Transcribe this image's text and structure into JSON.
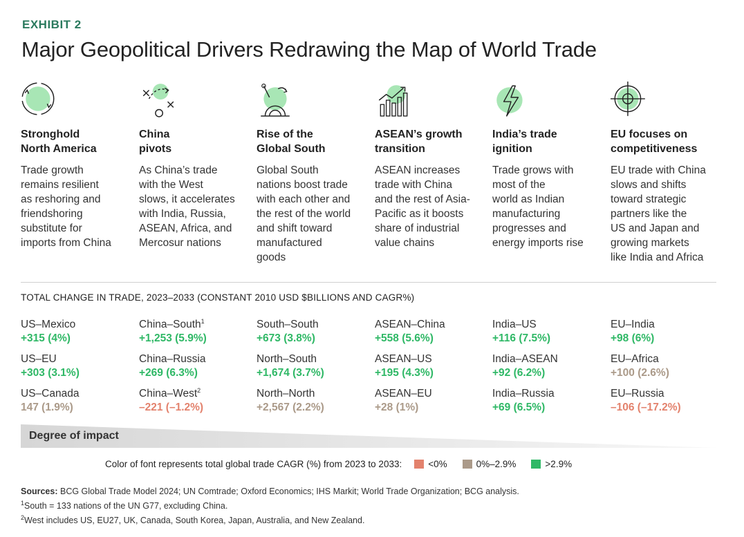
{
  "header": {
    "exhibit": "EXHIBIT 2",
    "title": "Major Geopolitical Drivers Redrawing the Map of World Trade"
  },
  "drivers": [
    {
      "icon": "globe-cycle-icon",
      "title": "Stronghold\nNorth America",
      "desc": "Trade growth\nremains resilient\nas reshoring and\nfriendshoring\nsubstitute for\nimports from China"
    },
    {
      "icon": "strategy-pivot-icon",
      "title": "China\npivots",
      "desc": "As China’s trade\nwith the West\nslows, it accelerates\nwith India, Russia,\nASEAN, Africa, and\nMercosur nations"
    },
    {
      "icon": "rising-sun-icon",
      "title": "Rise of the\nGlobal South",
      "desc": "Global South\nnations boost trade\nwith each other and\nthe rest of the world\nand shift toward\nmanufactured\ngoods"
    },
    {
      "icon": "growth-chart-icon",
      "title": "ASEAN’s growth\ntransition",
      "desc": "ASEAN increases\ntrade with China\nand the rest of Asia-\nPacific as it boosts\nshare of industrial\nvalue chains"
    },
    {
      "icon": "lightning-icon",
      "title": "India’s trade\nignition",
      "desc": "Trade grows with\nmost of the\nworld as Indian\nmanufacturing\nprogresses and\nenergy imports rise"
    },
    {
      "icon": "target-icon",
      "title": "EU focuses on\ncompetitiveness",
      "desc": "EU trade with China\nslows and shifts\ntoward strategic\npartners like the\nUS and Japan and\ngrowing markets\nlike India and Africa"
    }
  ],
  "section_label": "TOTAL CHANGE IN TRADE, 2023–2033 (CONSTANT 2010 USD $BILLIONS AND CAGR%)",
  "colors": {
    "negative": "#e3826d",
    "low": "#ab9a89",
    "high": "#2fb866",
    "accent": "#2b7a5e",
    "icon_fill": "#a8e6b5"
  },
  "chart_data": {
    "type": "table",
    "columns": [
      [
        {
          "pair": "US–Mexico",
          "sup": "",
          "value": "+315 (4%)",
          "change": 315,
          "cagr": 4.0,
          "category": "high"
        },
        {
          "pair": "US–EU",
          "sup": "",
          "value": "+303 (3.1%)",
          "change": 303,
          "cagr": 3.1,
          "category": "high"
        },
        {
          "pair": "US–Canada",
          "sup": "",
          "value": "147 (1.9%)",
          "change": 147,
          "cagr": 1.9,
          "category": "low"
        }
      ],
      [
        {
          "pair": "China–South",
          "sup": "1",
          "value": "+1,253 (5.9%)",
          "change": 1253,
          "cagr": 5.9,
          "category": "high"
        },
        {
          "pair": "China–Russia",
          "sup": "",
          "value": "+269 (6.3%)",
          "change": 269,
          "cagr": 6.3,
          "category": "high"
        },
        {
          "pair": "China–West",
          "sup": "2",
          "value": "–221 (–1.2%)",
          "change": -221,
          "cagr": -1.2,
          "category": "negative"
        }
      ],
      [
        {
          "pair": "South–South",
          "sup": "",
          "value": "+673 (3.8%)",
          "change": 673,
          "cagr": 3.8,
          "category": "high"
        },
        {
          "pair": "North–South",
          "sup": "",
          "value": "+1,674 (3.7%)",
          "change": 1674,
          "cagr": 3.7,
          "category": "high"
        },
        {
          "pair": "North–North",
          "sup": "",
          "value": "+2,567 (2.2%)",
          "change": 2567,
          "cagr": 2.2,
          "category": "low"
        }
      ],
      [
        {
          "pair": "ASEAN–China",
          "sup": "",
          "value": "+558 (5.6%)",
          "change": 558,
          "cagr": 5.6,
          "category": "high"
        },
        {
          "pair": "ASEAN–US",
          "sup": "",
          "value": "+195 (4.3%)",
          "change": 195,
          "cagr": 4.3,
          "category": "high"
        },
        {
          "pair": "ASEAN–EU",
          "sup": "",
          "value": "+28 (1%)",
          "change": 28,
          "cagr": 1.0,
          "category": "low"
        }
      ],
      [
        {
          "pair": "India–US",
          "sup": "",
          "value": "+116 (7.5%)",
          "change": 116,
          "cagr": 7.5,
          "category": "high"
        },
        {
          "pair": "India–ASEAN",
          "sup": "",
          "value": "+92 (6.2%)",
          "change": 92,
          "cagr": 6.2,
          "category": "high"
        },
        {
          "pair": "India–Russia",
          "sup": "",
          "value": "+69 (6.5%)",
          "change": 69,
          "cagr": 6.5,
          "category": "high"
        }
      ],
      [
        {
          "pair": "EU–India",
          "sup": "",
          "value": "+98 (6%)",
          "change": 98,
          "cagr": 6.0,
          "category": "high"
        },
        {
          "pair": "EU–Africa",
          "sup": "",
          "value": "+100 (2.6%)",
          "change": 100,
          "cagr": 2.6,
          "category": "low"
        },
        {
          "pair": "EU–Russia",
          "sup": "",
          "value": "–106 (–17.2%)",
          "change": -106,
          "cagr": -17.2,
          "category": "negative"
        }
      ]
    ]
  },
  "impact": {
    "label": "Degree of impact"
  },
  "legend": {
    "text": "Color of font represents total global trade CAGR (%) from 2023 to 2033:",
    "items": [
      {
        "label": "<0%",
        "category": "negative"
      },
      {
        "label": "0%–2.9%",
        "category": "low"
      },
      {
        "label": ">2.9%",
        "category": "high"
      }
    ]
  },
  "notes": {
    "sources_label": "Sources:",
    "sources": "BCG Global Trade Model 2024; UN Comtrade; Oxford Economics; IHS Markit; World Trade Organization; BCG analysis.",
    "note1_mark": "1",
    "note1": "South = 133 nations of the UN G77, excluding China.",
    "note2_mark": "2",
    "note2": "West includes US, EU27, UK, Canada, South Korea, Japan, Australia, and New Zealand."
  }
}
